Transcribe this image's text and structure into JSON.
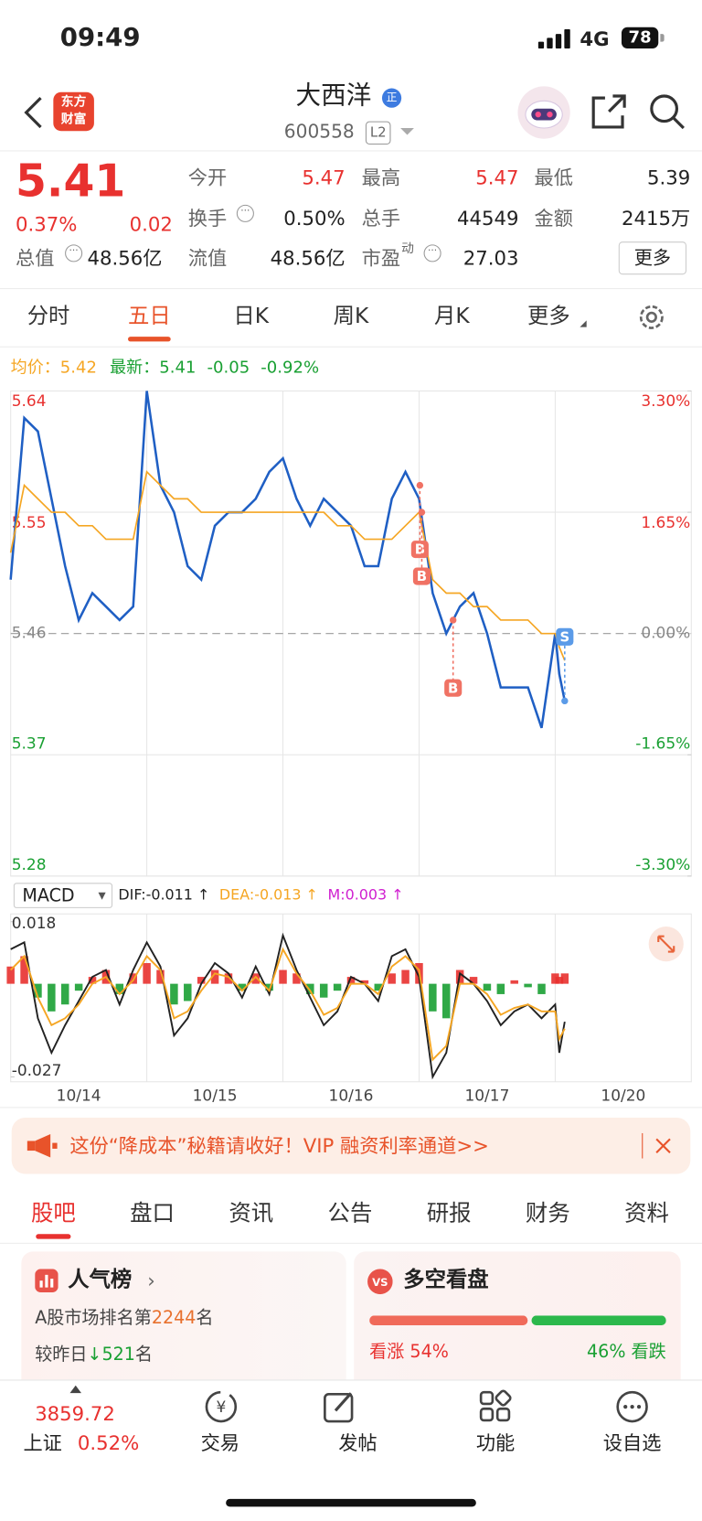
{
  "status_bar": {
    "time": "09:49",
    "network": "4G",
    "battery": "78"
  },
  "header": {
    "logo_top": "东方",
    "logo_bottom": "财富",
    "name": "大西洋",
    "badge": "正",
    "code": "600558",
    "level": "L2"
  },
  "quote": {
    "price": 5.41,
    "change_pct": "0.37%",
    "change": 0.02,
    "fields": [
      {
        "label": "今开",
        "value": 5.47
      },
      {
        "label": "最高",
        "value": 5.47
      },
      {
        "label": "最低",
        "value": 5.39
      },
      {
        "label": "换手",
        "value": "0.50%"
      },
      {
        "label": "总手",
        "value": 44549
      },
      {
        "label": "金额",
        "value": "2415万"
      },
      {
        "label": "流值",
        "value": "48.56亿"
      },
      {
        "label": "市盈",
        "sup": "动",
        "value": 27.03
      }
    ],
    "total_label": "总值",
    "total_value": "48.56亿",
    "more": "更多"
  },
  "tabs": {
    "items": [
      "分时",
      "五日",
      "日K",
      "周K",
      "月K",
      "更多"
    ],
    "active": 1
  },
  "legend": {
    "avg_label": "均价：",
    "avg": 5.42,
    "last_label": "最新：",
    "last": 5.41,
    "change": -0.05,
    "change_pct": "-0.92%"
  },
  "chart_data": [
    {
      "type": "line",
      "up_color": "#e8312f",
      "down_color": "#1aa033",
      "flat_color": "#888888",
      "x": [
        0,
        0.1,
        0.2,
        0.3,
        0.4,
        0.5,
        0.6,
        0.7,
        0.8,
        0.9,
        1,
        1.1,
        1.2,
        1.3,
        1.4,
        1.5,
        1.6,
        1.7,
        1.8,
        1.9,
        2,
        2.1,
        2.2,
        2.3,
        2.4,
        2.5,
        2.6,
        2.7,
        2.8,
        2.9,
        3,
        3.1,
        3.2,
        3.3,
        3.4,
        3.5,
        3.6,
        3.7,
        3.8,
        3.9,
        4,
        4.03,
        4.07
      ],
      "xlim": [
        0,
        5
      ],
      "ylim": [
        5.28,
        5.64
      ],
      "yticks": [
        5.64,
        5.55,
        5.46,
        5.37,
        5.28
      ],
      "y2lim": [
        -3.3,
        3.3
      ],
      "y2ticks": [
        {
          "value": 3.3,
          "label": "3.30%"
        },
        {
          "value": 1.65,
          "label": "1.65%"
        },
        {
          "value": 0,
          "label": "0.00%"
        },
        {
          "value": -1.65,
          "label": "-1.65%"
        },
        {
          "value": -3.3,
          "label": "-3.30%"
        }
      ],
      "series": [
        {
          "color": "#1f5fc4",
          "values": [
            5.5,
            5.62,
            5.61,
            5.56,
            5.51,
            5.47,
            5.49,
            5.48,
            5.47,
            5.48,
            5.64,
            5.57,
            5.55,
            5.51,
            5.5,
            5.54,
            5.55,
            5.55,
            5.56,
            5.58,
            5.59,
            5.56,
            5.54,
            5.56,
            5.55,
            5.54,
            5.51,
            5.51,
            5.56,
            5.58,
            5.56,
            5.49,
            5.46,
            5.48,
            5.49,
            5.46,
            5.42,
            5.42,
            5.42,
            5.39,
            5.46,
            5.43,
            5.41
          ]
        },
        {
          "color": "#f5a623",
          "values": [
            5.52,
            5.57,
            5.56,
            5.55,
            5.55,
            5.54,
            5.54,
            5.53,
            5.53,
            5.53,
            5.58,
            5.57,
            5.56,
            5.56,
            5.55,
            5.55,
            5.55,
            5.55,
            5.55,
            5.55,
            5.55,
            5.55,
            5.55,
            5.55,
            5.54,
            5.54,
            5.53,
            5.53,
            5.53,
            5.54,
            5.55,
            5.5,
            5.49,
            5.49,
            5.48,
            5.48,
            5.47,
            5.47,
            5.47,
            5.46,
            5.46,
            5.45,
            5.44
          ]
        }
      ],
      "markers": [
        {
          "label": "B",
          "x": 3.006,
          "value": 5.57,
          "color": "#f07264"
        },
        {
          "label": "B",
          "x": 3.02,
          "value": 5.55,
          "color": "#f07264"
        },
        {
          "label": "B",
          "x": 3.25,
          "value": 5.47,
          "color": "#f07264"
        },
        {
          "label": "S",
          "x": 4.07,
          "value": 5.41,
          "color": "#5b9be8"
        }
      ]
    },
    {
      "type": "combo",
      "title": "MACD",
      "up_color": "#e8312f",
      "down_color": "#1aa033",
      "x": [
        0,
        0.1,
        0.2,
        0.3,
        0.4,
        0.5,
        0.6,
        0.7,
        0.8,
        0.9,
        1,
        1.1,
        1.2,
        1.3,
        1.4,
        1.5,
        1.6,
        1.7,
        1.8,
        1.9,
        2,
        2.1,
        2.2,
        2.3,
        2.4,
        2.5,
        2.6,
        2.7,
        2.8,
        2.9,
        3,
        3.1,
        3.2,
        3.3,
        3.4,
        3.5,
        3.6,
        3.7,
        3.8,
        3.9,
        4,
        4.03,
        4.07
      ],
      "xlim": [
        0,
        5
      ],
      "xticks": [
        {
          "value": 0.5,
          "label": "10/14"
        },
        {
          "value": 1.5,
          "label": "10/15"
        },
        {
          "value": 2.5,
          "label": "10/16"
        },
        {
          "value": 3.5,
          "label": "10/17"
        },
        {
          "value": 4.5,
          "label": "10/20"
        }
      ],
      "ylim": [
        -0.027,
        0.018
      ],
      "yticks": [
        0.018,
        -0.027
      ],
      "series": [
        {
          "name": "DIF:-0.011 ↑",
          "color": "#222222",
          "kind": "line",
          "values": [
            0.01,
            0.012,
            -0.01,
            -0.02,
            -0.012,
            -0.005,
            0.002,
            0.004,
            -0.006,
            0.004,
            0.012,
            0.005,
            -0.015,
            -0.01,
            0,
            0.006,
            0.003,
            -0.004,
            0.005,
            -0.003,
            0.014,
            0.004,
            -0.004,
            -0.012,
            -0.008,
            0.002,
            0,
            -0.005,
            0.008,
            0.01,
            0.002,
            -0.027,
            -0.02,
            0.003,
            0,
            -0.005,
            -0.012,
            -0.008,
            -0.006,
            -0.01,
            -0.006,
            -0.02,
            -0.011
          ]
        },
        {
          "name": "DEA:-0.013 ↑",
          "color": "#f5a623",
          "kind": "line",
          "values": [
            0.004,
            0.008,
            -0.004,
            -0.012,
            -0.01,
            -0.006,
            0,
            0.002,
            -0.003,
            0.001,
            0.008,
            0.004,
            -0.01,
            -0.008,
            -0.002,
            0.003,
            0.002,
            -0.002,
            0.002,
            -0.002,
            0.01,
            0.003,
            -0.002,
            -0.009,
            -0.007,
            0,
            0,
            -0.003,
            0.005,
            0.008,
            0.004,
            -0.022,
            -0.018,
            0,
            0,
            -0.003,
            -0.009,
            -0.007,
            -0.006,
            -0.008,
            -0.008,
            -0.016,
            -0.013
          ]
        },
        {
          "name": "M:0.003 ↑",
          "color": "#d020d0",
          "kind": "bar",
          "values": [
            0.005,
            0.008,
            -0.004,
            -0.008,
            -0.006,
            -0.002,
            0.002,
            0.004,
            -0.003,
            0.003,
            0.006,
            0.004,
            -0.006,
            -0.005,
            0.002,
            0.004,
            0.003,
            -0.002,
            0.003,
            -0.002,
            0.004,
            0.003,
            -0.003,
            -0.004,
            -0.002,
            0.002,
            0.001,
            -0.002,
            0.003,
            0.004,
            0.006,
            -0.008,
            -0.01,
            0.004,
            0.002,
            -0.002,
            -0.003,
            0.001,
            -0.001,
            -0.003,
            0.003,
            0.002,
            0.003
          ]
        }
      ]
    }
  ],
  "banner": {
    "text": "这份“降成本”秘籍请收好！VIP 融资利率通道>>"
  },
  "sub_tabs": {
    "items": [
      "股吧",
      "盘口",
      "资讯",
      "公告",
      "研报",
      "财务",
      "资料"
    ],
    "active": 0
  },
  "popularity": {
    "title": "人气榜",
    "rank_prefix": "A股市场排名第",
    "rank": 2244,
    "rank_suffix": "名",
    "delta_prefix": "较昨日",
    "delta": 521,
    "delta_suffix": "名"
  },
  "sentiment": {
    "title": "多空看盘",
    "bull_label": "看涨",
    "bull": {
      "value": 54,
      "label": "54%"
    },
    "bear": {
      "value": 46,
      "label": "46%"
    },
    "bear_label": "看跌"
  },
  "bottom_nav": {
    "index_value": 3859.72,
    "index_name": "上证",
    "index_change": "0.52%",
    "items": [
      "交易",
      "发帖",
      "功能",
      "设自选"
    ]
  }
}
